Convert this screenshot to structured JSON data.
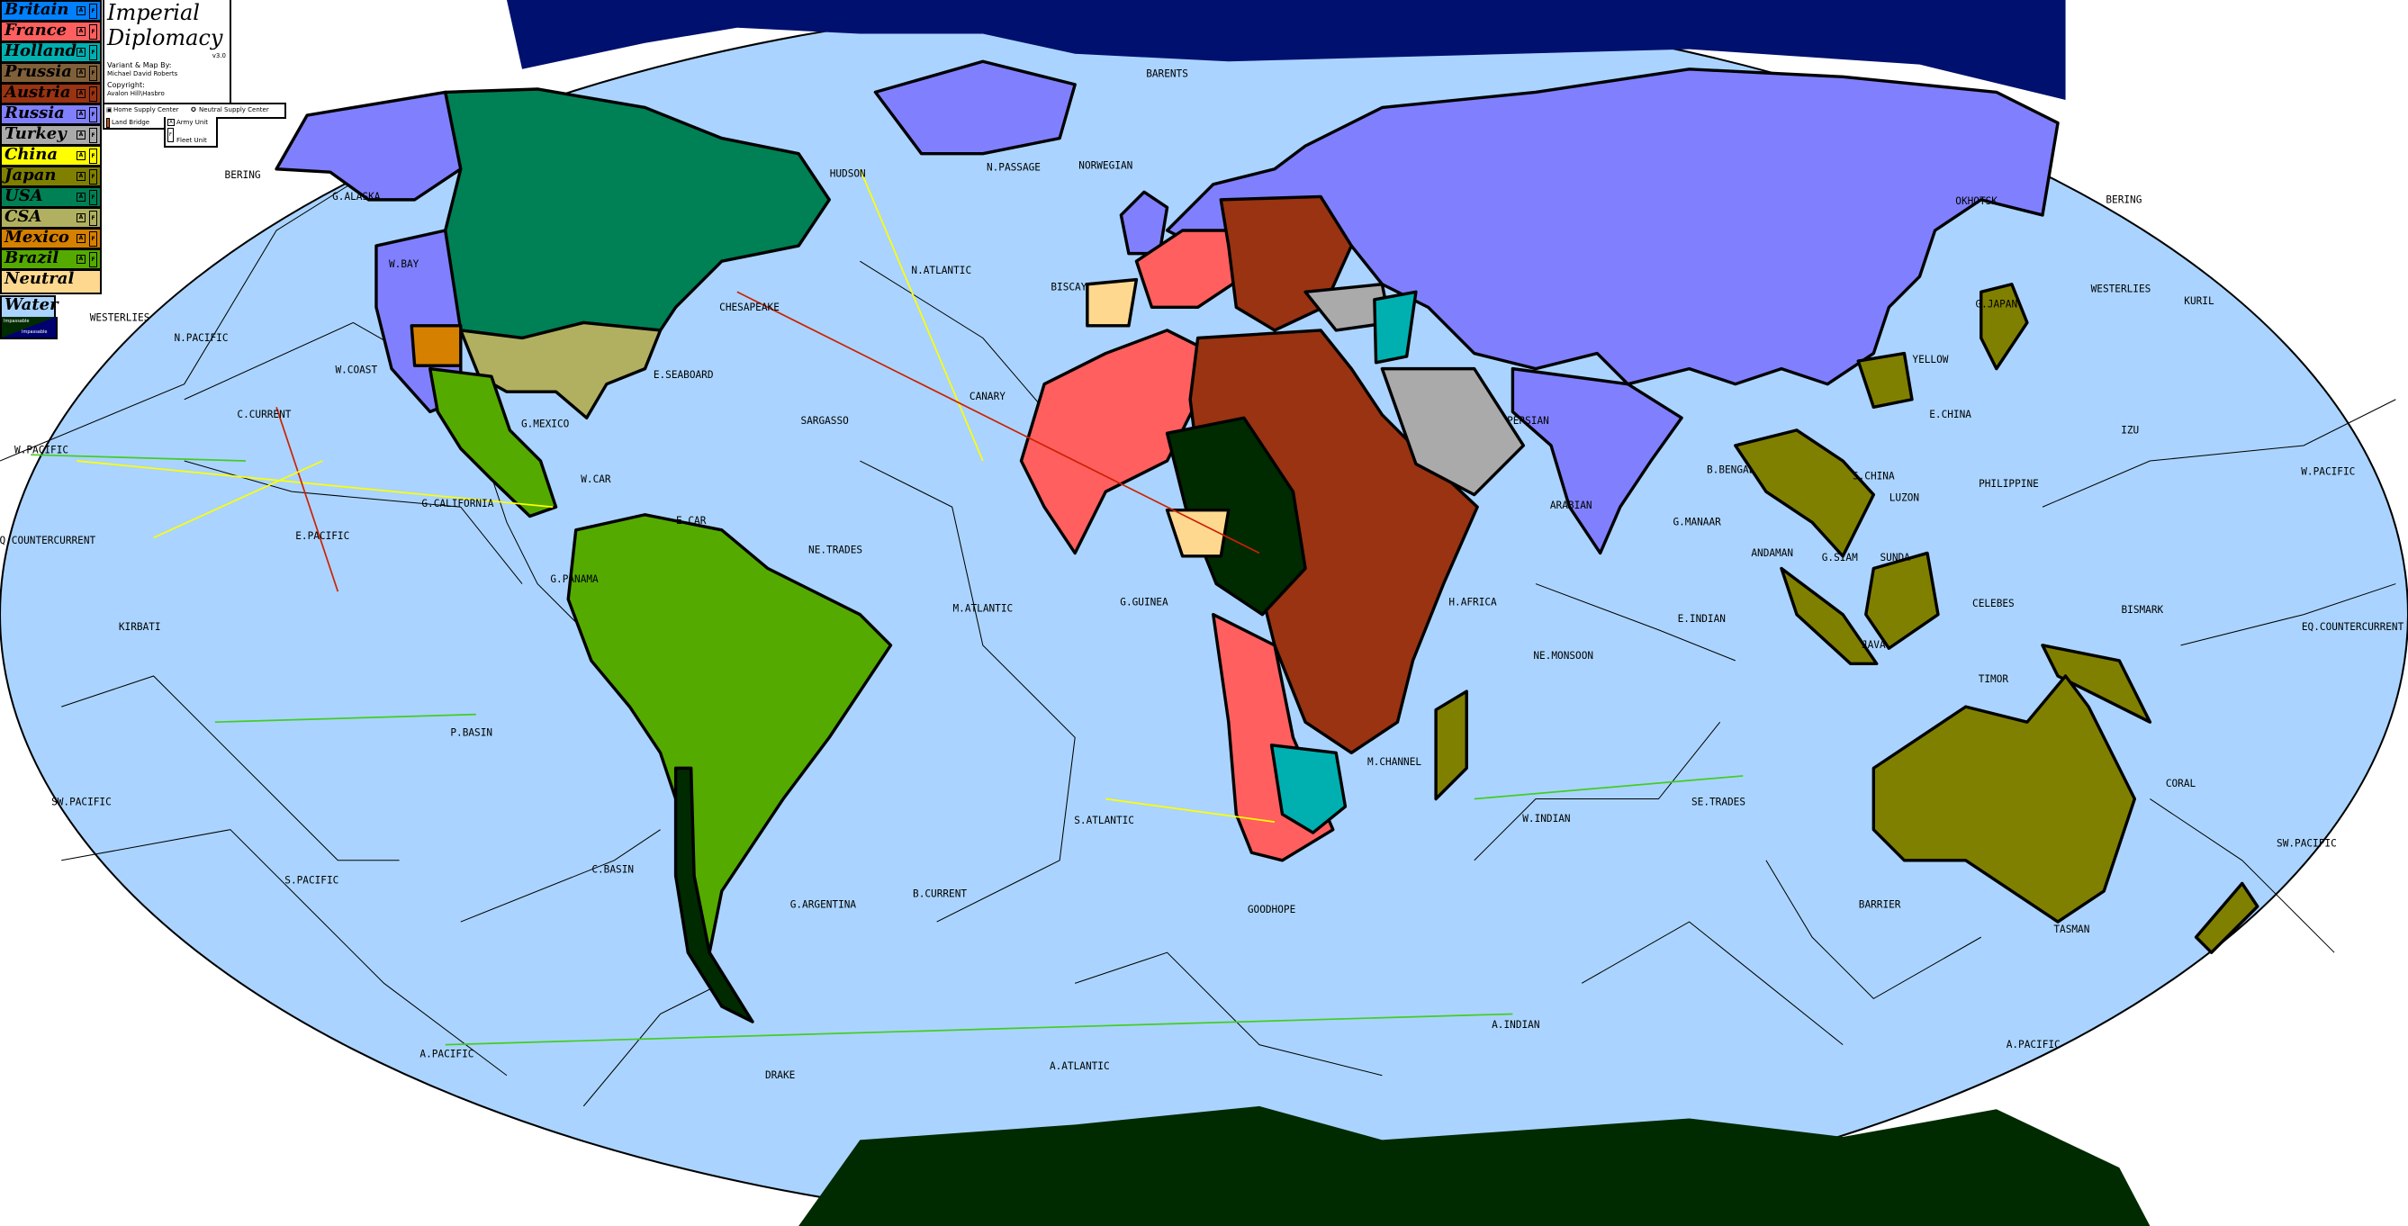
{
  "title": {
    "name": "Imperial Diplomacy",
    "version": "v3.0",
    "credit_label": "Variant & Map By:",
    "author": "Michael David Roberts",
    "copyright_label": "Copyright:",
    "copyright_holder": "Avalon Hill\\Hasbro"
  },
  "key": {
    "home_sc": "Home Supply Center",
    "neutral_sc": "Neutral Supply Center",
    "land_bridge": "Land Bridge",
    "army_unit": "Army Unit",
    "fleet_unit": "Fleet Unit",
    "army_glyph": "A",
    "fleet_glyph": "F"
  },
  "powers": [
    {
      "name": "Britain",
      "color": "#0080ff"
    },
    {
      "name": "France",
      "color": "#ff5f5f"
    },
    {
      "name": "Holland",
      "color": "#00b0b0"
    },
    {
      "name": "Prussia",
      "color": "#80603a"
    },
    {
      "name": "Austria",
      "color": "#993311"
    },
    {
      "name": "Russia",
      "color": "#8080ff"
    },
    {
      "name": "Turkey",
      "color": "#aaaaaa"
    },
    {
      "name": "China",
      "color": "#ffff00"
    },
    {
      "name": "Japan",
      "color": "#808000"
    },
    {
      "name": "USA",
      "color": "#008055"
    },
    {
      "name": "CSA",
      "color": "#b0b060"
    },
    {
      "name": "Mexico",
      "color": "#d68000"
    },
    {
      "name": "Brazil",
      "color": "#55aa00"
    }
  ],
  "neutral": {
    "name": "Neutral",
    "color": "#ffd890"
  },
  "water": {
    "name": "Water",
    "color": "#aad4ff",
    "impassable_land": "Impassable",
    "impassable_water": "Impassable",
    "impassable_land_color": "#002a00",
    "impassable_water_color": "#00106e"
  },
  "seas": [
    "BERING",
    "G.ALASKA",
    "W.BAY",
    "WESTERLIES",
    "N.PACIFIC",
    "W.COAST",
    "C.CURRENT",
    "W.PACIFIC",
    "EQ.COUNTERCURRENT",
    "E.PACIFIC",
    "KIRBATI",
    "P.BASIN",
    "G.CALIFORNIA",
    "G.MEXICO",
    "E.SEABOARD",
    "CHESAPEAKE",
    "W.CAR",
    "E.CAR",
    "G.PANAMA",
    "HUDSON",
    "N.PASSAGE",
    "BARENTS",
    "NORWEGIAN",
    "N.ATLANTIC",
    "BISCAY",
    "SARGASSO",
    "CANARY",
    "NE.TRADES",
    "M.ATLANTIC",
    "G.GUINEA",
    "S.ATLANTIC",
    "B.CURRENT",
    "G.ARGENTINA",
    "C.BASIN",
    "S.PACIFIC",
    "SW.PACIFIC",
    "A.PACIFIC",
    "DRAKE",
    "A.ATLANTIC",
    "GOODHOPE",
    "A.INDIAN",
    "H.AFRICA",
    "M.CHANNEL",
    "W.INDIAN",
    "NE.MONSOON",
    "SE.TRADES",
    "ARABIAN",
    "G.MANAAR",
    "B.BENGAL",
    "ANDAMAN",
    "E.INDIAN",
    "G.SIAM",
    "S.CHINA",
    "LUZON",
    "PHILIPPINE",
    "SUNDA",
    "JAVA",
    "CELEBES",
    "TIMOR",
    "BISMARK",
    "EQ.COUNTERCURRENT",
    "W.PACIFIC",
    "CORAL",
    "SW.PACIFIC",
    "BARRIER",
    "TASMAN",
    "A.PACIFIC",
    "YELLOW",
    "E.CHINA",
    "G.JAPAN",
    "OKHOTSK",
    "IZU",
    "KURIL",
    "BERING",
    "WESTERLIES",
    "PERSIAN"
  ]
}
